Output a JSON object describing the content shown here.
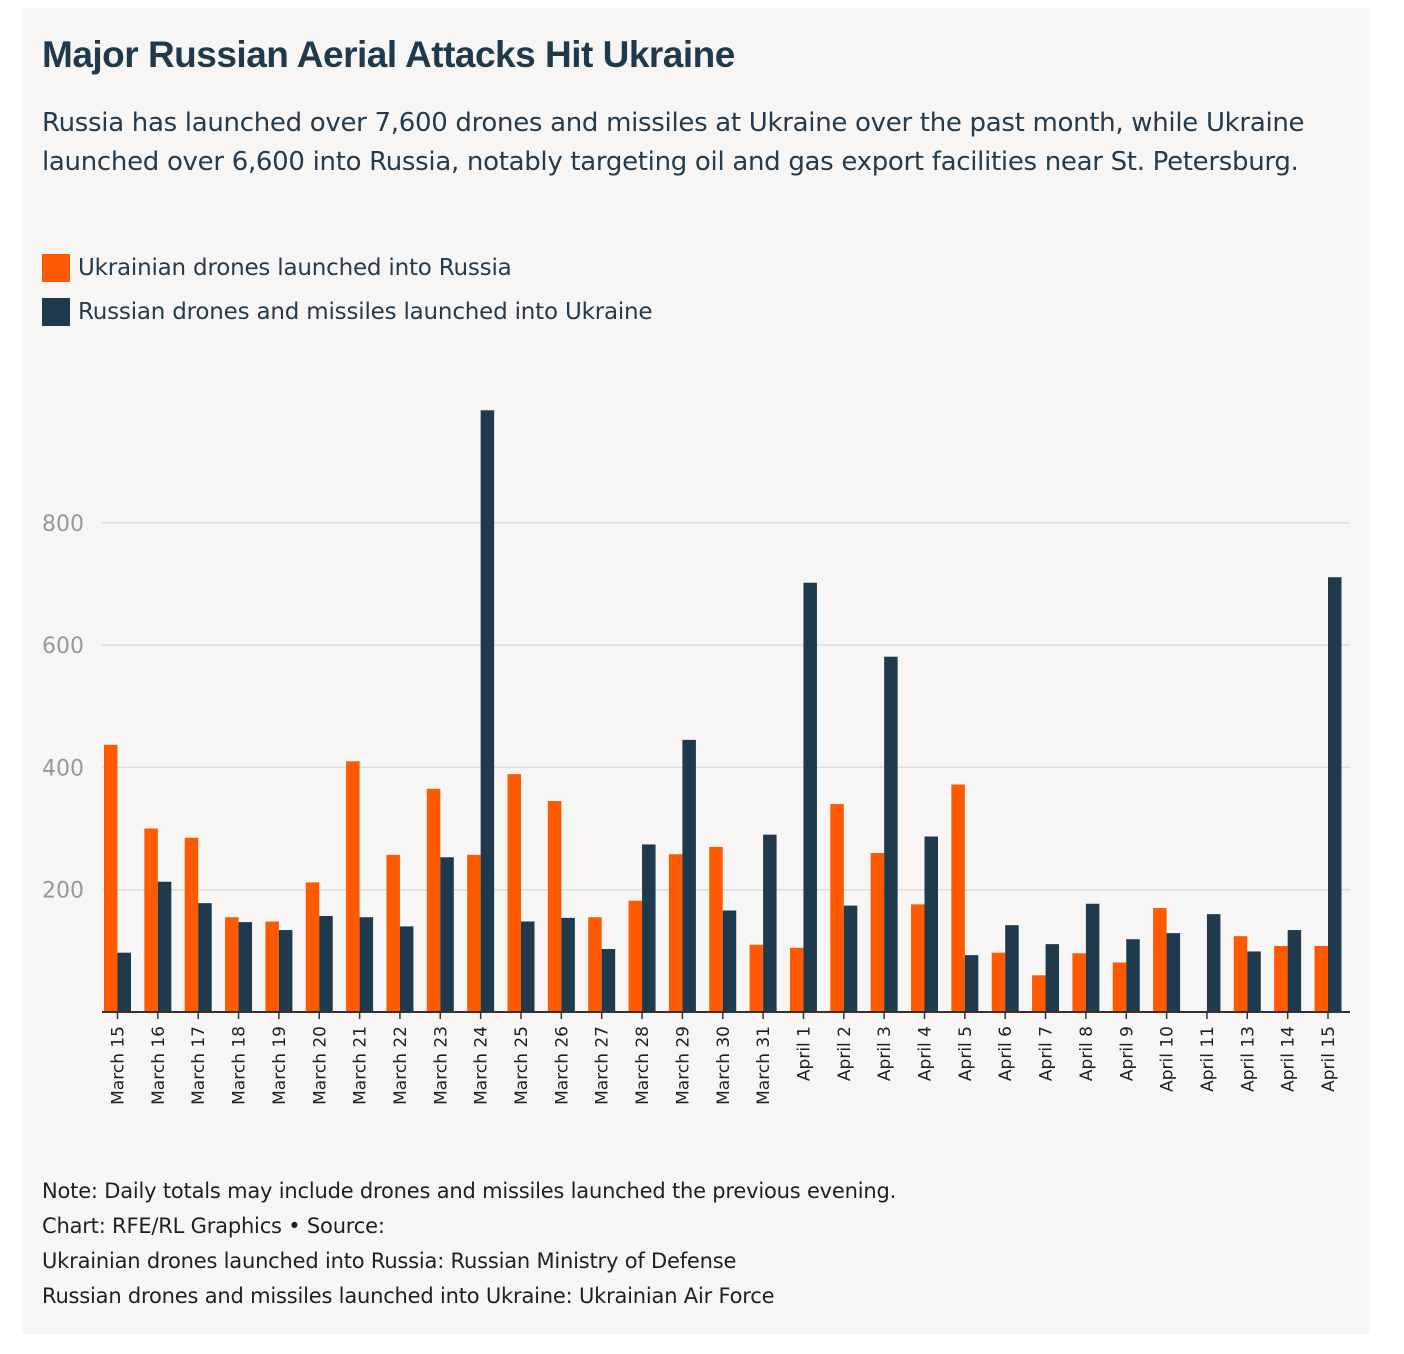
{
  "title": "Major Russian Aerial Attacks Hit Ukraine",
  "subtitle": "Russia has launched over 7,600 drones and missiles at Ukraine over the past month, while Ukraine launched over 6,600 into Russia, notably targeting oil and gas export facilities near St. Petersburg.",
  "colors": {
    "ukrainian": "#ff5a00",
    "russian": "#1e3a4c",
    "grid": "#dedcda",
    "tick_label": "#9a9896",
    "background": "#f7f6f5"
  },
  "legend": [
    {
      "label": "Ukrainian drones launched into Russia",
      "color": "#ff5a00"
    },
    {
      "label": "Russian drones and missiles launched into Ukraine",
      "color": "#1e3a4c"
    }
  ],
  "chart_data": {
    "type": "bar",
    "categories": [
      "March 15",
      "March 16",
      "March 17",
      "March 18",
      "March 19",
      "March 20",
      "March 21",
      "March 22",
      "March 23",
      "March 24",
      "March 25",
      "March 26",
      "March 27",
      "March 28",
      "March 29",
      "March 30",
      "March 31",
      "April 1",
      "April 2",
      "April 3",
      "April 4",
      "April 5",
      "April 6",
      "April 7",
      "April 8",
      "April 9",
      "April 10",
      "April 11",
      "April 13",
      "April 14",
      "April 15"
    ],
    "series": [
      {
        "name": "Ukrainian drones launched into Russia",
        "values": [
          437,
          300,
          285,
          155,
          148,
          212,
          410,
          257,
          365,
          257,
          389,
          345,
          155,
          182,
          258,
          270,
          110,
          105,
          340,
          260,
          176,
          372,
          97,
          60,
          96,
          81,
          170,
          0,
          124,
          108,
          108
        ]
      },
      {
        "name": "Russian drones and missiles launched into Ukraine",
        "values": [
          97,
          213,
          178,
          147,
          134,
          157,
          155,
          140,
          253,
          984,
          148,
          154,
          103,
          274,
          445,
          166,
          290,
          702,
          174,
          581,
          287,
          93,
          142,
          111,
          177,
          119,
          129,
          160,
          99,
          134,
          711
        ]
      }
    ],
    "yticks": [
      200,
      400,
      600,
      800
    ],
    "ylim": [
      0,
      1000
    ],
    "title": "Major Russian Aerial Attacks Hit Ukraine",
    "xlabel": "",
    "ylabel": ""
  },
  "footer": {
    "note": "Note: Daily totals may include drones and missiles launched the previous evening.",
    "credit": "Chart: RFE/RL Graphics • Source:",
    "source_1": "Ukrainian drones launched into Russia: Russian Ministry of Defense",
    "source_2": "Russian drones and missiles launched into Ukraine: Ukrainian Air Force"
  }
}
